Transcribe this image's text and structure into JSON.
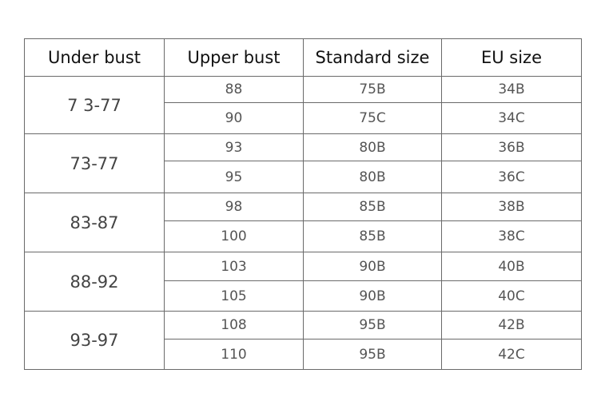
{
  "headers": [
    "Under bust",
    "Upper bust",
    "Standard size",
    "EU size"
  ],
  "groups": [
    {
      "under_bust": "7 3-77",
      "rows": [
        [
          "88",
          "75B",
          "34B"
        ],
        [
          "90",
          "75C",
          "34C"
        ]
      ]
    },
    {
      "under_bust": "73-77",
      "rows": [
        [
          "93",
          "80B",
          "36B"
        ],
        [
          "95",
          "80B",
          "36C"
        ]
      ]
    },
    {
      "under_bust": "83-87",
      "rows": [
        [
          "98",
          "85B",
          "38B"
        ],
        [
          "100",
          "85B",
          "38C"
        ]
      ]
    },
    {
      "under_bust": "88-92",
      "rows": [
        [
          "103",
          "90B",
          "40B"
        ],
        [
          "105",
          "90B",
          "40C"
        ]
      ]
    },
    {
      "under_bust": "93-97",
      "rows": [
        [
          "108",
          "95B",
          "42B"
        ],
        [
          "110",
          "95B",
          "42C"
        ]
      ]
    }
  ]
}
